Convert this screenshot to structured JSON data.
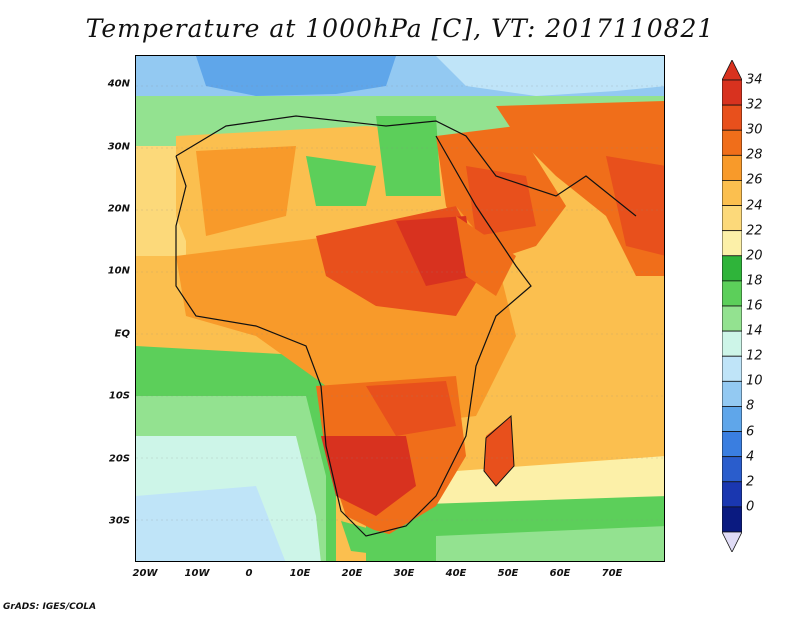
{
  "title": "Temperature at 1000hPa [C], VT: 2017110821",
  "credit": "GrADS: IGES/COLA",
  "lat_labels": [
    "40N",
    "30N",
    "20N",
    "10N",
    "EQ",
    "10S",
    "20S",
    "30S"
  ],
  "lon_labels": [
    "20W",
    "10W",
    "0",
    "10E",
    "20E",
    "30E",
    "40E",
    "50E",
    "60E",
    "70E"
  ],
  "colorbar": {
    "labels": [
      "34",
      "32",
      "30",
      "28",
      "26",
      "24",
      "22",
      "20",
      "18",
      "16",
      "14",
      "12",
      "10",
      "8",
      "6",
      "4",
      "2",
      "0"
    ],
    "colors_top_to_bottom": [
      "#d8321f",
      "#e8501c",
      "#f06e1a",
      "#f89a2a",
      "#fbbf4f",
      "#fcd97a",
      "#fcf0a8",
      "#2fb43a",
      "#5ccf5a",
      "#93e290",
      "#cdf5e8",
      "#bfe4f8",
      "#93c9f2",
      "#5fa6ea",
      "#3a7ee0",
      "#2a5dcc",
      "#1a37b0",
      "#0a1a80"
    ],
    "over_color": "#d8321f",
    "under_color": "#e0dcf6"
  },
  "field": {
    "variable": "Temperature",
    "level": "1000hPa",
    "units": "C",
    "valid_time": "2017110821",
    "lon_range": [
      -25,
      80
    ],
    "lat_range": [
      -37,
      45
    ]
  }
}
